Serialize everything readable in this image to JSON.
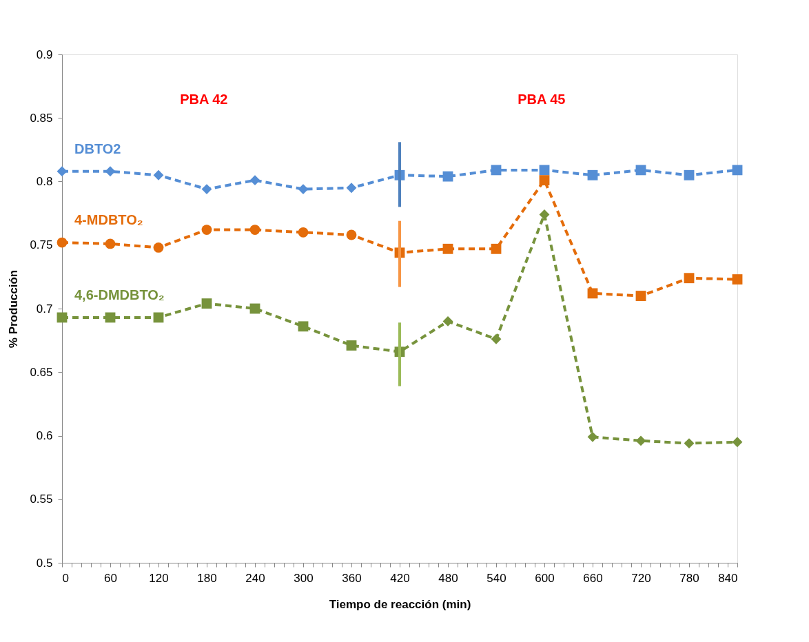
{
  "chart_data": {
    "type": "line",
    "xlabel": "Tiempo de reacción (min)",
    "ylabel": "% Producción",
    "annotations": [
      "PBA  42",
      "PBA  45"
    ],
    "xlim": [
      0,
      840
    ],
    "ylim": [
      0.5,
      0.9
    ],
    "xticks": [
      0,
      {
        "value": 12,
        "label": null
      },
      {
        "value": 24,
        "label": null
      },
      {
        "value": 36,
        "label": null
      },
      {
        "value": 48,
        "label": null
      },
      60,
      {
        "value": 72,
        "label": null
      },
      {
        "value": 84,
        "label": null
      },
      {
        "value": 96,
        "label": null
      },
      {
        "value": 108,
        "label": null
      },
      120,
      {
        "value": 132,
        "label": null
      },
      {
        "value": 144,
        "label": null
      },
      {
        "value": 156,
        "label": null
      },
      {
        "value": 168,
        "label": null
      },
      180,
      {
        "value": 192,
        "label": null
      },
      {
        "value": 204,
        "label": null
      },
      {
        "value": 216,
        "label": null
      },
      {
        "value": 228,
        "label": null
      },
      240,
      {
        "value": 252,
        "label": null
      },
      {
        "value": 264,
        "label": null
      },
      {
        "value": 276,
        "label": null
      },
      {
        "value": 288,
        "label": null
      },
      300,
      {
        "value": 312,
        "label": null
      },
      {
        "value": 324,
        "label": null
      },
      {
        "value": 336,
        "label": null
      },
      {
        "value": 348,
        "label": null
      },
      360,
      {
        "value": 372,
        "label": null
      },
      {
        "value": 384,
        "label": null
      },
      {
        "value": 396,
        "label": null
      },
      {
        "value": 408,
        "label": null
      },
      420,
      {
        "value": 432,
        "label": null
      },
      {
        "value": 444,
        "label": null
      },
      {
        "value": 456,
        "label": null
      },
      {
        "value": 468,
        "label": null
      },
      480,
      {
        "value": 492,
        "label": null
      },
      {
        "value": 504,
        "label": null
      },
      {
        "value": 516,
        "label": null
      },
      {
        "value": 528,
        "label": null
      },
      540,
      {
        "value": 552,
        "label": null
      },
      {
        "value": 564,
        "label": null
      },
      {
        "value": 576,
        "label": null
      },
      {
        "value": 588,
        "label": null
      },
      600,
      {
        "value": 612,
        "label": null
      },
      {
        "value": 624,
        "label": null
      },
      {
        "value": 636,
        "label": null
      },
      {
        "value": 648,
        "label": null
      },
      660,
      {
        "value": 672,
        "label": null
      },
      {
        "value": 684,
        "label": null
      },
      {
        "value": 696,
        "label": null
      },
      {
        "value": 708,
        "label": null
      },
      720,
      {
        "value": 732,
        "label": null
      },
      {
        "value": 744,
        "label": null
      },
      {
        "value": 756,
        "label": null
      },
      {
        "value": 768,
        "label": null
      },
      780,
      {
        "value": 792,
        "label": null
      },
      {
        "value": 804,
        "label": null
      },
      {
        "value": 816,
        "label": null
      },
      {
        "value": 828,
        "label": null
      },
      840
    ],
    "yticks": [
      0.5,
      0.55,
      0.6,
      0.65,
      0.7,
      0.75,
      0.8,
      0.85,
      0.9
    ],
    "grid": false,
    "legend": false,
    "line_style": "dashed",
    "series": [
      {
        "name": "DBTO2",
        "type": "line",
        "marker": "none",
        "color": "#558ed5",
        "x": [
          0,
          60,
          120,
          180,
          240,
          300,
          360,
          420,
          480,
          540,
          600,
          660,
          720,
          780,
          840
        ],
        "values": [
          0.808,
          0.808,
          0.805,
          0.794,
          0.801,
          0.794,
          0.795,
          0.805,
          0.804,
          0.809,
          0.809,
          0.805,
          0.809,
          0.805,
          0.809
        ]
      },
      {
        "type": "scatter",
        "marker": "diamond",
        "color": "#558ed5",
        "x": [
          0,
          60,
          120,
          180,
          240,
          300,
          360
        ],
        "values": [
          0.808,
          0.808,
          0.805,
          0.794,
          0.801,
          0.794,
          0.795
        ]
      },
      {
        "type": "scatter",
        "marker": "square",
        "color": "#558ed5",
        "x": [
          420,
          480,
          540,
          600,
          660,
          720,
          780,
          840
        ],
        "values": [
          0.805,
          0.804,
          0.809,
          0.809,
          0.805,
          0.809,
          0.805,
          0.809
        ]
      },
      {
        "name": "4-MDBTO₂",
        "type": "line",
        "marker": "none",
        "color": "#e46c0a",
        "x": [
          0,
          60,
          120,
          180,
          240,
          300,
          360,
          420,
          480,
          540,
          600,
          660,
          720,
          780,
          840
        ],
        "values": [
          0.752,
          0.751,
          0.748,
          0.762,
          0.762,
          0.76,
          0.758,
          0.744,
          0.747,
          0.747,
          0.801,
          0.712,
          0.71,
          0.724,
          0.723
        ]
      },
      {
        "type": "scatter",
        "marker": "circle",
        "color": "#e46c0a",
        "x": [
          0,
          60,
          120,
          180,
          240,
          300,
          360
        ],
        "values": [
          0.752,
          0.751,
          0.748,
          0.762,
          0.762,
          0.76,
          0.758
        ]
      },
      {
        "type": "scatter",
        "marker": "square",
        "color": "#e46c0a",
        "x": [
          420,
          480,
          540,
          600,
          660,
          720,
          780,
          840
        ],
        "values": [
          0.744,
          0.747,
          0.747,
          0.801,
          0.712,
          0.71,
          0.724,
          0.723
        ]
      },
      {
        "name": "4,6-DMDBTO₂",
        "type": "line",
        "marker": "none",
        "color": "#77933c",
        "x": [
          0,
          60,
          120,
          180,
          240,
          300,
          360,
          420,
          480,
          540,
          600,
          660,
          720,
          780,
          840
        ],
        "values": [
          0.693,
          0.693,
          0.693,
          0.704,
          0.7,
          0.686,
          0.671,
          0.666,
          0.69,
          0.676,
          0.774,
          0.599,
          0.596,
          0.594,
          0.595
        ]
      },
      {
        "type": "scatter",
        "marker": "square",
        "color": "#77933c",
        "x": [
          0,
          60,
          120,
          180,
          240,
          300,
          360,
          420
        ],
        "values": [
          0.693,
          0.693,
          0.693,
          0.704,
          0.7,
          0.686,
          0.671,
          0.666
        ]
      },
      {
        "type": "scatter",
        "marker": "diamond",
        "color": "#77933c",
        "x": [
          480,
          540,
          600,
          660,
          720,
          780,
          840
        ],
        "values": [
          0.69,
          0.676,
          0.774,
          0.599,
          0.596,
          0.594,
          0.595
        ]
      },
      {
        "type": "line",
        "line_style": "solid",
        "marker": "none",
        "color": "#4f81bd",
        "x": [
          420,
          420
        ],
        "values": [
          0.831,
          0.78
        ]
      },
      {
        "type": "line",
        "line_style": "solid",
        "marker": "none",
        "color": "#f79646",
        "x": [
          420,
          420
        ],
        "values": [
          0.769,
          0.717
        ]
      },
      {
        "type": "line",
        "line_style": "solid",
        "marker": "none",
        "color": "#9bbb59",
        "x": [
          420,
          420
        ],
        "values": [
          0.689,
          0.639
        ]
      }
    ]
  }
}
